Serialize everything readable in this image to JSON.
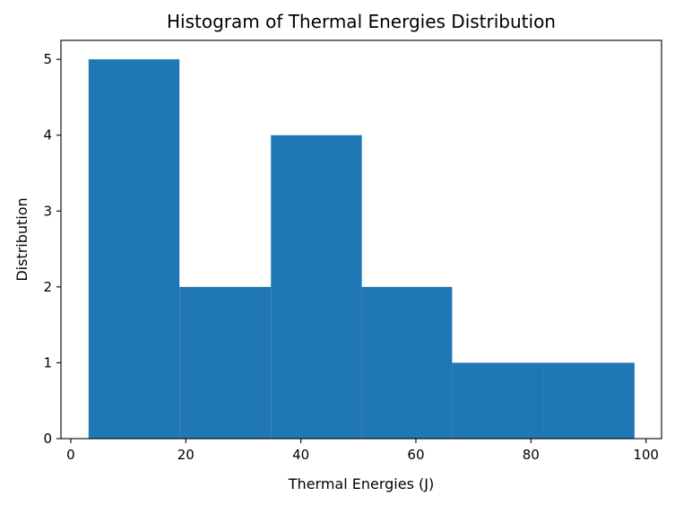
{
  "chart_data": {
    "type": "histogram",
    "title": "Histogram of Thermal Energies Distribution",
    "xlabel": "Thermal Energies (J)",
    "ylabel": "Distribution",
    "xlim": [
      -1.7,
      102.7
    ],
    "ylim": [
      0,
      5.25
    ],
    "xticks": [
      0,
      20,
      40,
      60,
      80,
      100
    ],
    "yticks": [
      0,
      1,
      2,
      3,
      4,
      5
    ],
    "bin_edges": [
      3.1,
      18.9,
      34.8,
      50.6,
      66.3,
      82.2,
      98.0
    ],
    "counts": [
      5,
      2,
      4,
      2,
      1,
      1
    ],
    "bar_color": "#1f77b4",
    "grid": false,
    "legend": "none"
  }
}
